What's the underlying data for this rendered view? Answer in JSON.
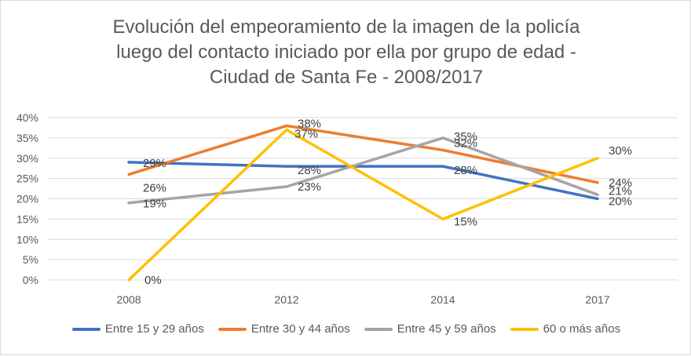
{
  "chart_data": {
    "type": "line",
    "title_lines": [
      "Evolución del empeoramiento de la imagen de la policía",
      "luego del contacto iniciado por ella por grupo de edad -",
      "Ciudad de Santa Fe - 2008/2017"
    ],
    "categories": [
      "2008",
      "2012",
      "2014",
      "2017"
    ],
    "y_ticks": [
      "0%",
      "5%",
      "10%",
      "15%",
      "20%",
      "25%",
      "30%",
      "35%",
      "40%"
    ],
    "ylim": [
      0,
      40
    ],
    "grid": true,
    "legend_position": "bottom",
    "series": [
      {
        "name": "Entre 15 y 29 años",
        "color": "#4472c4",
        "values": [
          29,
          28,
          28,
          20
        ],
        "labels": [
          "29%",
          "28%",
          "28%",
          "20%"
        ]
      },
      {
        "name": "Entre 30 y 44 años",
        "color": "#ed7d31",
        "values": [
          26,
          38,
          32,
          24
        ],
        "labels": [
          "26%",
          "38%",
          "32%",
          "24%"
        ]
      },
      {
        "name": "Entre 45 y 59 años",
        "color": "#a5a5a5",
        "values": [
          19,
          23,
          35,
          21
        ],
        "labels": [
          "19%",
          "23%",
          "35%",
          "21%"
        ]
      },
      {
        "name": "60 o más años",
        "color": "#ffc000",
        "values": [
          0,
          37,
          15,
          30
        ],
        "labels": [
          "0%",
          "37%",
          "15%",
          "30%"
        ]
      }
    ]
  }
}
